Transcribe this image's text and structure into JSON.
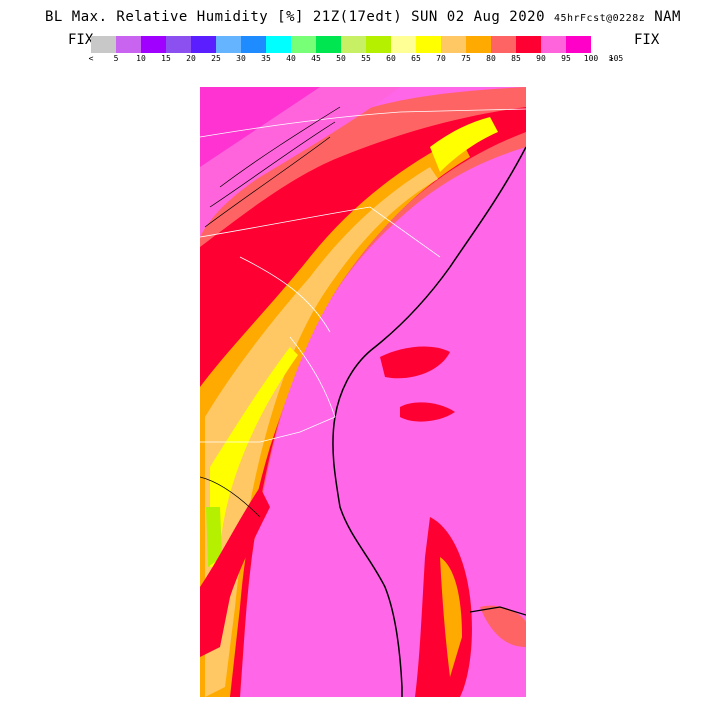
{
  "title": {
    "main": "BL Max. Relative Humidity [%] 21Z(17edt) SUN 02 Aug 2020",
    "forecast": "45hrFcst@0228z",
    "model": "NAM"
  },
  "fix_left": "FIX",
  "fix_right": "FIX",
  "legend": {
    "left_arrow": "<",
    "right_arrow": ">",
    "labels": [
      "5",
      "10",
      "15",
      "20",
      "25",
      "30",
      "35",
      "40",
      "45",
      "50",
      "55",
      "60",
      "65",
      "70",
      "75",
      "80",
      "85",
      "90",
      "95",
      "100",
      "105"
    ],
    "colors": [
      "#c8c8c8",
      "#c864f0",
      "#a000ff",
      "#8c50f0",
      "#5a1eff",
      "#64b4ff",
      "#1e8cff",
      "#00ffff",
      "#78ff78",
      "#00e650",
      "#c8f064",
      "#b4f000",
      "#ffff96",
      "#ffff00",
      "#ffc864",
      "#ffaa00",
      "#ff6464",
      "#ff0032",
      "#ff64dc",
      "#ff00c8"
    ]
  }
}
